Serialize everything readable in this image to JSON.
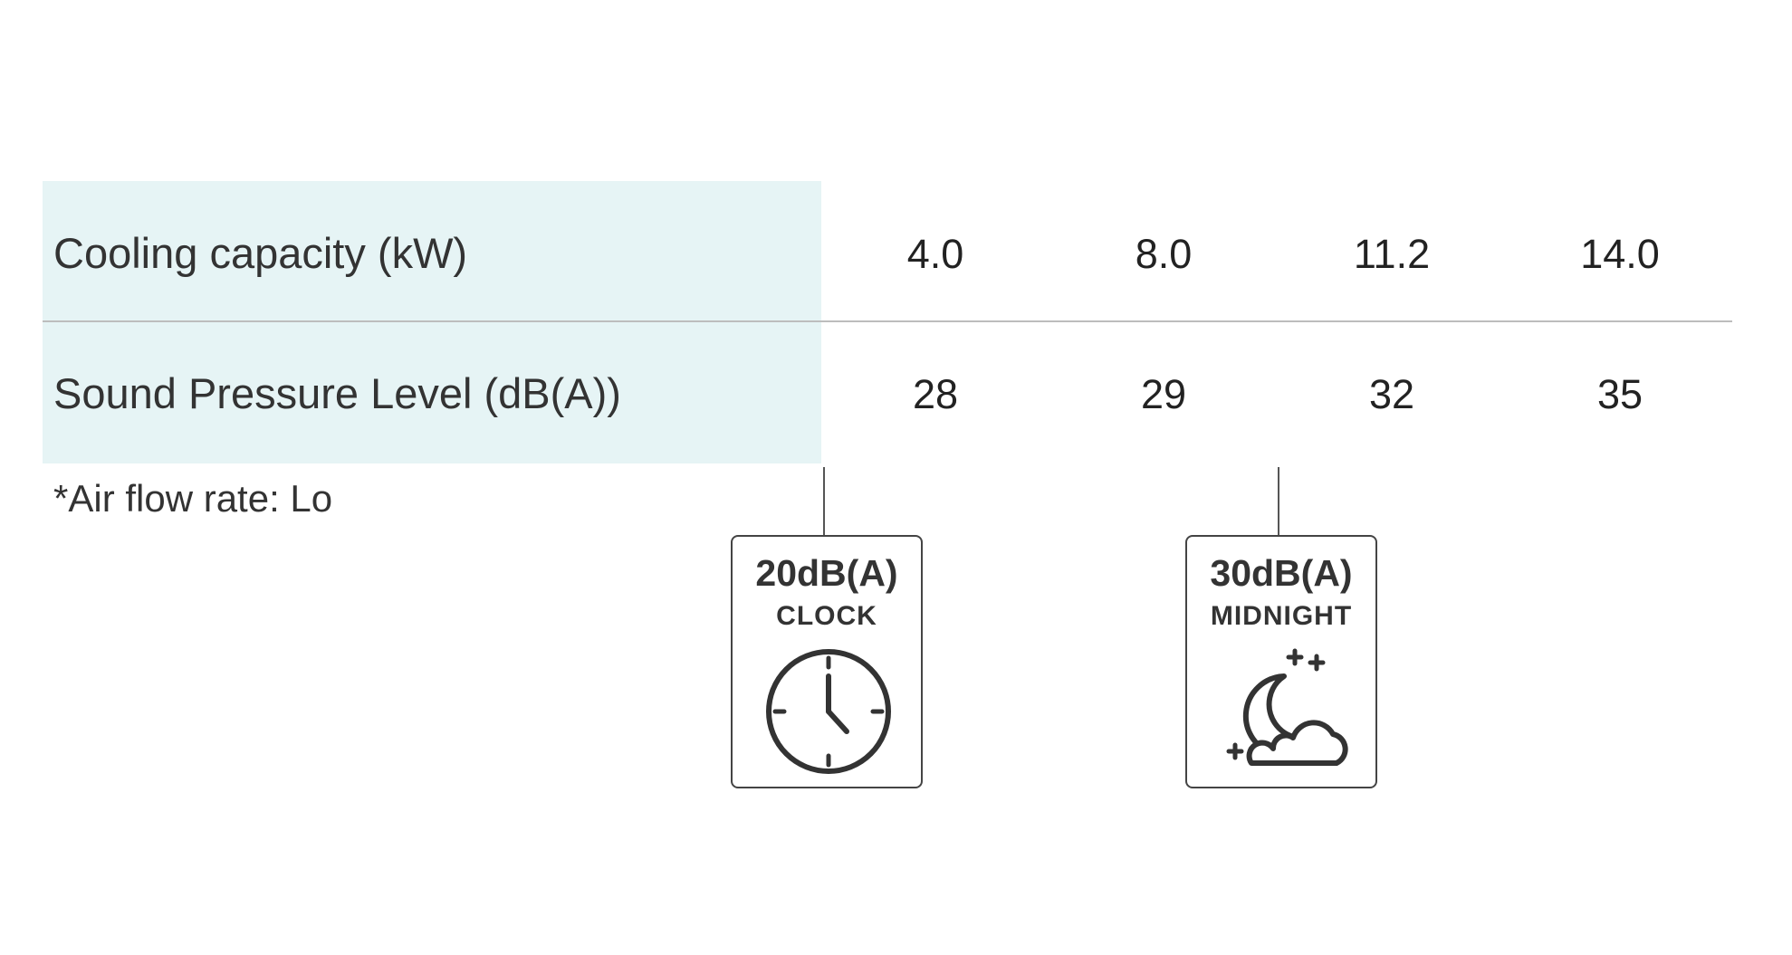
{
  "table": {
    "rows": [
      {
        "label": "Cooling capacity (kW)",
        "values": [
          "4.0",
          "8.0",
          "11.2",
          "14.0"
        ]
      },
      {
        "label": "Sound Pressure Level (dB(A))",
        "values": [
          "28",
          "29",
          "32",
          "35"
        ]
      }
    ],
    "label_background": "#e6f4f5",
    "divider_color": "#bdbdbd"
  },
  "footnote": "*Air flow rate: Lo",
  "callouts": [
    {
      "level": "20dB(A)",
      "name": "CLOCK",
      "icon": "clock-icon"
    },
    {
      "level": "30dB(A)",
      "name": "MIDNIGHT",
      "icon": "moon-cloud-stars-icon"
    }
  ]
}
